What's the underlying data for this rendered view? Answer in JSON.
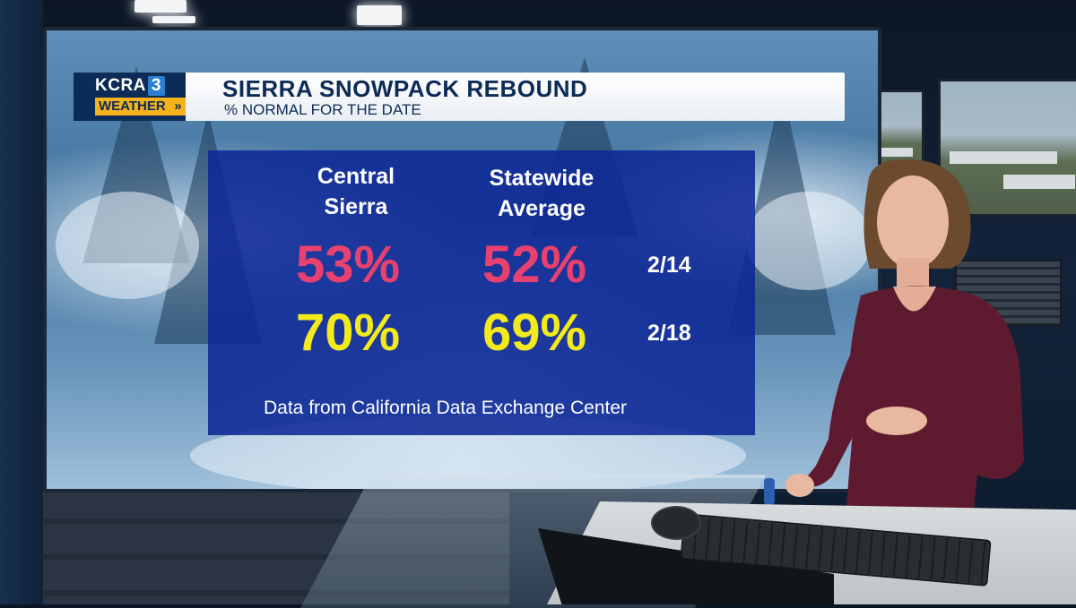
{
  "header": {
    "logo_station": "KCRA",
    "logo_number": "3",
    "logo_weather": "WEATHER",
    "title": "SIERRA SNOWPACK REBOUND",
    "subtitle": "% NORMAL FOR THE DATE"
  },
  "panel": {
    "columns": [
      {
        "line1": "Central",
        "line2": "Sierra"
      },
      {
        "line1": "Statewide",
        "line2": "Average"
      }
    ],
    "rows": [
      {
        "central": "53%",
        "statewide": "52%",
        "date": "2/14",
        "color": "#e8416f"
      },
      {
        "central": "70%",
        "statewide": "69%",
        "date": "2/18",
        "color": "#f2ea1c"
      }
    ],
    "source": "Data from California Data Exchange Center"
  },
  "colors": {
    "brand_navy": "#0d2b57",
    "panel_blue": "#0e2896",
    "weather_gold": "#f5b21b"
  }
}
